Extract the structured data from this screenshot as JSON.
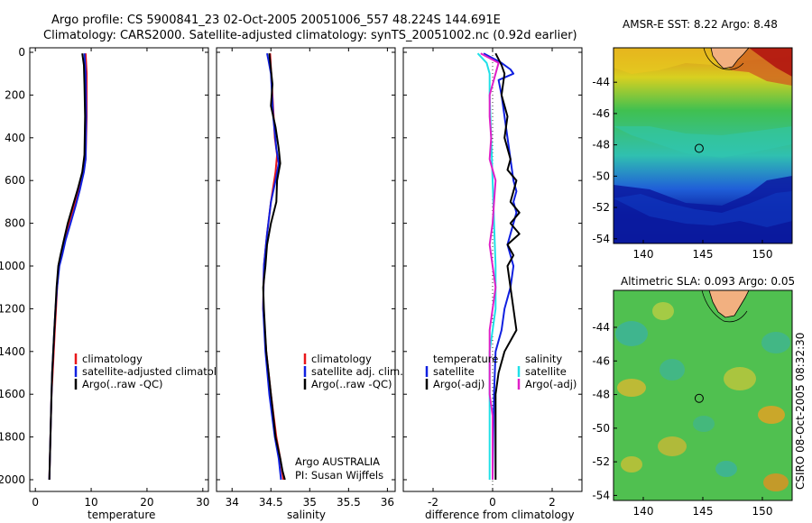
{
  "title": {
    "line1": "Argo profile: CS 5900841_23 02-Oct-2005 20051006_557 48.224S 144.691E",
    "line2": "Climatology: CARS2000. Satellite-adjusted climatology: synTS_20051002.nc (0.92d earlier)"
  },
  "colors": {
    "red": "#e8161a",
    "blue": "#1020e0",
    "black": "#000000",
    "cyan": "#20e0e8",
    "magenta": "#e020c8",
    "axis": "#000000"
  },
  "chart_data": [
    {
      "id": "temperature",
      "type": "line",
      "xlabel": "temperature",
      "ylabel": "",
      "xlim": [
        -1,
        31
      ],
      "ylim": [
        2000,
        0
      ],
      "xticks": [
        0,
        10,
        20,
        30
      ],
      "yticks": [
        0,
        200,
        400,
        600,
        800,
        1000,
        1200,
        1400,
        1600,
        1800,
        2000
      ],
      "legend": [
        "climatology",
        "satellite-adjusted climatology",
        "Argo(..raw -QC)"
      ],
      "series": [
        {
          "name": "climatology",
          "color": "red",
          "points": [
            [
              9.0,
              5
            ],
            [
              9.2,
              100
            ],
            [
              9.2,
              300
            ],
            [
              9.0,
              500
            ],
            [
              8.6,
              560
            ],
            [
              7.8,
              640
            ],
            [
              6.9,
              720
            ],
            [
              6.0,
              800
            ],
            [
              5.2,
              880
            ],
            [
              4.6,
              950
            ],
            [
              4.2,
              1000
            ],
            [
              3.9,
              1100
            ],
            [
              3.7,
              1200
            ],
            [
              3.5,
              1300
            ],
            [
              3.3,
              1400
            ],
            [
              3.1,
              1500
            ],
            [
              2.9,
              1600
            ],
            [
              2.8,
              1700
            ],
            [
              2.7,
              1800
            ],
            [
              2.6,
              1900
            ],
            [
              2.5,
              2000
            ]
          ]
        },
        {
          "name": "satellite-adjusted climatology",
          "color": "blue",
          "points": [
            [
              8.8,
              5
            ],
            [
              9.0,
              100
            ],
            [
              9.1,
              300
            ],
            [
              9.0,
              500
            ],
            [
              8.7,
              560
            ],
            [
              8.0,
              640
            ],
            [
              7.2,
              720
            ],
            [
              6.3,
              800
            ],
            [
              5.4,
              880
            ],
            [
              4.8,
              950
            ],
            [
              4.3,
              1000
            ],
            [
              3.9,
              1100
            ],
            [
              3.6,
              1200
            ],
            [
              3.4,
              1300
            ],
            [
              3.2,
              1400
            ],
            [
              3.0,
              1500
            ],
            [
              2.9,
              1600
            ],
            [
              2.8,
              1700
            ],
            [
              2.7,
              1800
            ],
            [
              2.6,
              1900
            ],
            [
              2.5,
              2000
            ]
          ]
        },
        {
          "name": "Argo(..raw -QC)",
          "color": "black",
          "points": [
            [
              8.4,
              5
            ],
            [
              8.7,
              60
            ],
            [
              8.8,
              150
            ],
            [
              8.9,
              300
            ],
            [
              8.8,
              480
            ],
            [
              8.4,
              560
            ],
            [
              7.6,
              640
            ],
            [
              6.7,
              720
            ],
            [
              5.8,
              800
            ],
            [
              5.1,
              880
            ],
            [
              4.5,
              950
            ],
            [
              4.1,
              1000
            ],
            [
              3.8,
              1100
            ],
            [
              3.6,
              1200
            ],
            [
              3.4,
              1300
            ],
            [
              3.2,
              1400
            ],
            [
              3.0,
              1500
            ],
            [
              2.9,
              1600
            ],
            [
              2.8,
              1700
            ],
            [
              2.7,
              1800
            ],
            [
              2.6,
              1900
            ],
            [
              2.5,
              2000
            ]
          ]
        }
      ]
    },
    {
      "id": "salinity",
      "type": "line",
      "xlabel": "salinity",
      "xlim": [
        33.8,
        36.1
      ],
      "ylim": [
        2000,
        0
      ],
      "xticks": [
        34,
        34.5,
        35,
        35.5,
        36
      ],
      "legend": [
        "climatology",
        "satellite adj. clim.",
        "Argo(..raw -QC)"
      ],
      "series": [
        {
          "name": "climatology",
          "color": "red",
          "points": [
            [
              34.49,
              5
            ],
            [
              34.52,
              200
            ],
            [
              34.55,
              400
            ],
            [
              34.58,
              480
            ],
            [
              34.56,
              560
            ],
            [
              34.5,
              700
            ],
            [
              34.45,
              850
            ],
            [
              34.41,
              1000
            ],
            [
              34.4,
              1200
            ],
            [
              34.44,
              1400
            ],
            [
              34.5,
              1600
            ],
            [
              34.57,
              1800
            ],
            [
              34.62,
              1900
            ],
            [
              34.66,
              2000
            ]
          ]
        },
        {
          "name": "satellite adj. clim.",
          "color": "blue",
          "points": [
            [
              34.45,
              5
            ],
            [
              34.47,
              40
            ],
            [
              34.5,
              100
            ],
            [
              34.53,
              300
            ],
            [
              34.57,
              450
            ],
            [
              34.6,
              520
            ],
            [
              34.56,
              600
            ],
            [
              34.5,
              700
            ],
            [
              34.45,
              850
            ],
            [
              34.41,
              1000
            ],
            [
              34.4,
              1200
            ],
            [
              34.43,
              1400
            ],
            [
              34.48,
              1600
            ],
            [
              34.55,
              1800
            ],
            [
              34.6,
              1900
            ],
            [
              34.63,
              2000
            ]
          ]
        },
        {
          "name": "Argo(..raw -QC)",
          "color": "black",
          "points": [
            [
              34.48,
              5
            ],
            [
              34.5,
              80
            ],
            [
              34.52,
              150
            ],
            [
              34.5,
              250
            ],
            [
              34.56,
              350
            ],
            [
              34.6,
              450
            ],
            [
              34.62,
              520
            ],
            [
              34.58,
              600
            ],
            [
              34.57,
              700
            ],
            [
              34.5,
              800
            ],
            [
              34.45,
              900
            ],
            [
              34.43,
              1000
            ],
            [
              34.4,
              1100
            ],
            [
              34.41,
              1200
            ],
            [
              34.44,
              1400
            ],
            [
              34.5,
              1600
            ],
            [
              34.56,
              1800
            ],
            [
              34.62,
              1900
            ],
            [
              34.65,
              1960
            ],
            [
              34.68,
              2000
            ]
          ]
        }
      ],
      "annotation_line1": "Argo AUSTRALIA",
      "annotation_line2": "PI: Susan Wijffels"
    },
    {
      "id": "difference",
      "type": "line",
      "xlabel": "difference from climatology",
      "xlim": [
        -3,
        3
      ],
      "ylim": [
        2000,
        0
      ],
      "xticks": [
        -2,
        0,
        2
      ],
      "legend_col1_title": "temperature",
      "legend_col1": [
        "satellite",
        "Argo(-adj)"
      ],
      "legend_col2_title": "salinity",
      "legend_col2": [
        "satellite",
        "Argo(-adj)"
      ],
      "series": [
        {
          "name": "temperature satellite",
          "color": "blue",
          "points": [
            [
              -0.3,
              5
            ],
            [
              0.3,
              50
            ],
            [
              0.6,
              80
            ],
            [
              0.7,
              100
            ],
            [
              0.2,
              130
            ],
            [
              0.3,
              200
            ],
            [
              0.4,
              300
            ],
            [
              0.5,
              400
            ],
            [
              0.6,
              500
            ],
            [
              0.7,
              600
            ],
            [
              0.8,
              650
            ],
            [
              0.7,
              700
            ],
            [
              0.8,
              750
            ],
            [
              0.7,
              800
            ],
            [
              0.6,
              850
            ],
            [
              0.5,
              900
            ],
            [
              0.6,
              950
            ],
            [
              0.7,
              1000
            ],
            [
              0.6,
              1100
            ],
            [
              0.4,
              1200
            ],
            [
              0.3,
              1300
            ],
            [
              0.1,
              1400
            ],
            [
              0.05,
              1600
            ],
            [
              0.02,
              1800
            ],
            [
              0.0,
              2000
            ]
          ]
        },
        {
          "name": "temperature Argo(-adj)",
          "color": "black",
          "points": [
            [
              0.1,
              5
            ],
            [
              0.3,
              60
            ],
            [
              0.4,
              100
            ],
            [
              0.3,
              200
            ],
            [
              0.5,
              300
            ],
            [
              0.4,
              400
            ],
            [
              0.6,
              500
            ],
            [
              0.5,
              550
            ],
            [
              0.8,
              600
            ],
            [
              0.7,
              650
            ],
            [
              0.6,
              700
            ],
            [
              0.9,
              750
            ],
            [
              0.6,
              800
            ],
            [
              0.9,
              850
            ],
            [
              0.5,
              900
            ],
            [
              0.7,
              950
            ],
            [
              0.5,
              1000
            ],
            [
              0.6,
              1100
            ],
            [
              0.7,
              1200
            ],
            [
              0.8,
              1300
            ],
            [
              0.4,
              1400
            ],
            [
              0.2,
              1500
            ],
            [
              0.1,
              1600
            ],
            [
              0.1,
              1800
            ],
            [
              0.1,
              2000
            ]
          ]
        },
        {
          "name": "salinity satellite",
          "color": "cyan",
          "points": [
            [
              -0.5,
              5
            ],
            [
              -0.2,
              50
            ],
            [
              -0.1,
              100
            ],
            [
              -0.1,
              200
            ],
            [
              -0.05,
              400
            ],
            [
              0.0,
              600
            ],
            [
              0.05,
              800
            ],
            [
              0.1,
              1000
            ],
            [
              0.1,
              1200
            ],
            [
              -0.1,
              1400
            ],
            [
              -0.1,
              1600
            ],
            [
              -0.1,
              1800
            ],
            [
              -0.1,
              2000
            ]
          ]
        },
        {
          "name": "salinity Argo(-adj)",
          "color": "magenta",
          "points": [
            [
              -0.4,
              5
            ],
            [
              0.2,
              50
            ],
            [
              0.1,
              100
            ],
            [
              -0.1,
              200
            ],
            [
              -0.1,
              300
            ],
            [
              -0.05,
              400
            ],
            [
              -0.1,
              500
            ],
            [
              0.1,
              600
            ],
            [
              0.05,
              700
            ],
            [
              0.0,
              800
            ],
            [
              -0.1,
              900
            ],
            [
              0.0,
              1000
            ],
            [
              0.1,
              1100
            ],
            [
              0.0,
              1200
            ],
            [
              -0.1,
              1300
            ],
            [
              -0.1,
              1400
            ],
            [
              -0.1,
              1500
            ],
            [
              -0.1,
              1600
            ],
            [
              0.0,
              1700
            ],
            [
              0.0,
              1800
            ],
            [
              0.0,
              2000
            ]
          ]
        }
      ]
    },
    {
      "id": "sst_map",
      "type": "heatmap",
      "title": "AMSR-E SST: 8.22 Argo: 8.48",
      "xlim": [
        137.5,
        152.5
      ],
      "ylim": [
        -54.3,
        -41.8
      ],
      "xticks": [
        140,
        145,
        150
      ],
      "yticks": [
        -44,
        -46,
        -48,
        -50,
        -52,
        -54
      ],
      "argo_position": [
        144.691,
        -48.224
      ]
    },
    {
      "id": "sla_map",
      "type": "heatmap",
      "title": "Altimetric SLA: 0.093 Argo: 0.05",
      "xlim": [
        137.5,
        152.5
      ],
      "ylim": [
        -54.3,
        -41.8
      ],
      "xticks": [
        140,
        145,
        150
      ],
      "yticks": [
        -44,
        -46,
        -48,
        -50,
        -52,
        -54
      ],
      "argo_position": [
        144.691,
        -48.224
      ]
    }
  ],
  "credit": "CSIRO 08-Oct-2005 08:32:30"
}
